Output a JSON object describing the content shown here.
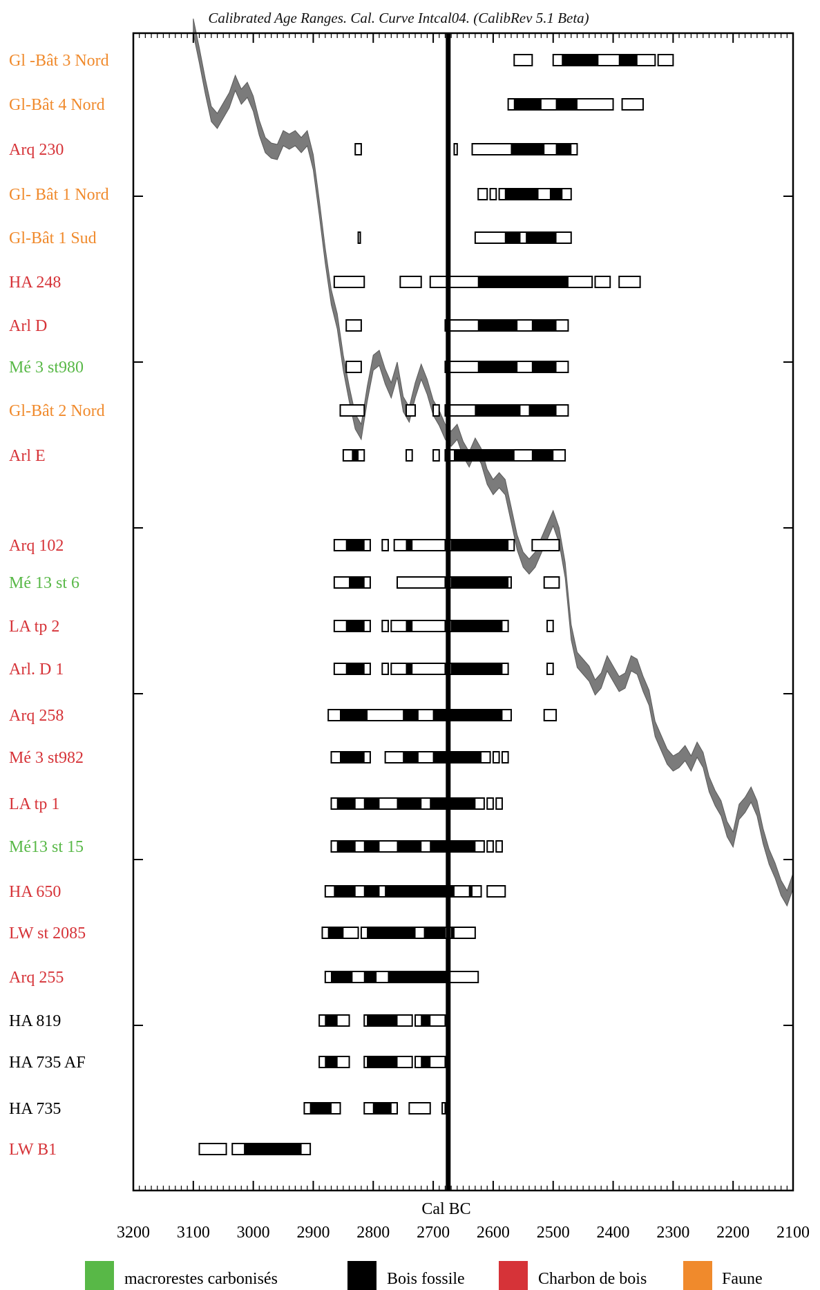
{
  "chart_data": {
    "type": "range-plot",
    "title": "Calibrated Age Ranges. Cal. Curve Intcal04. (CalibRev 5.1 Beta)",
    "xlabel": "Cal BC",
    "xlim": [
      3200,
      2100
    ],
    "x_ticks": [
      3200,
      3100,
      3000,
      2900,
      2800,
      2700,
      2600,
      2500,
      2400,
      2300,
      2200,
      2100
    ],
    "reference_line": 2675,
    "category_colors": {
      "macrorestes carbonisés": "#58b847",
      "Bois fossile": "#000000",
      "Charbon de bois": "#d63338",
      "Faune": "#f08a2c"
    },
    "legend": [
      {
        "label": "macrorestes carbonisés",
        "color": "#58b847"
      },
      {
        "label": "Bois fossile",
        "color": "#000000"
      },
      {
        "label": "Charbon de bois",
        "color": "#d63338"
      },
      {
        "label": "Faune",
        "color": "#f08a2c"
      }
    ],
    "samples": [
      {
        "name": "Gl -Bât 3 Nord",
        "category": "Faune",
        "sigma2": [
          [
            2565,
            2535
          ],
          [
            2500,
            2330
          ],
          [
            2325,
            2300
          ]
        ],
        "sigma1": [
          [
            2485,
            2425
          ],
          [
            2390,
            2360
          ]
        ]
      },
      {
        "name": "Gl-Bât 4 Nord",
        "category": "Faune",
        "sigma2": [
          [
            2575,
            2400
          ],
          [
            2385,
            2350
          ]
        ],
        "sigma1": [
          [
            2565,
            2520
          ],
          [
            2495,
            2460
          ]
        ]
      },
      {
        "name": "Arq 230",
        "category": "Charbon de bois",
        "sigma2": [
          [
            2830,
            2820
          ],
          [
            2665,
            2660
          ],
          [
            2635,
            2460
          ]
        ],
        "sigma1": [
          [
            2570,
            2515
          ],
          [
            2495,
            2470
          ]
        ]
      },
      {
        "name": "Gl- Bât 1 Nord",
        "category": "Faune",
        "sigma2": [
          [
            2625,
            2610
          ],
          [
            2605,
            2595
          ],
          [
            2590,
            2470
          ]
        ],
        "sigma1": [
          [
            2580,
            2525
          ],
          [
            2505,
            2485
          ]
        ]
      },
      {
        "name": "Gl-Bât 1 Sud",
        "category": "Faune",
        "sigma2": [
          [
            2825,
            2823
          ],
          [
            2630,
            2470
          ]
        ],
        "sigma1": [
          [
            2580,
            2555
          ],
          [
            2545,
            2495
          ]
        ]
      },
      {
        "name": "HA 248",
        "category": "Charbon de bois",
        "sigma2": [
          [
            2865,
            2815
          ],
          [
            2755,
            2720
          ],
          [
            2705,
            2435
          ],
          [
            2430,
            2405
          ],
          [
            2390,
            2355
          ]
        ],
        "sigma1": [
          [
            2625,
            2475
          ]
        ]
      },
      {
        "name": "Arl D",
        "category": "Charbon de bois",
        "sigma2": [
          [
            2845,
            2820
          ],
          [
            2680,
            2475
          ]
        ],
        "sigma1": [
          [
            2625,
            2560
          ],
          [
            2535,
            2495
          ]
        ]
      },
      {
        "name": "Mé 3 st980",
        "category": "macrorestes carbonisés",
        "sigma2": [
          [
            2845,
            2820
          ],
          [
            2680,
            2475
          ]
        ],
        "sigma1": [
          [
            2625,
            2560
          ],
          [
            2535,
            2495
          ]
        ]
      },
      {
        "name": "Gl-Bât 2 Nord",
        "category": "Faune",
        "sigma2": [
          [
            2855,
            2815
          ],
          [
            2745,
            2730
          ],
          [
            2700,
            2690
          ],
          [
            2680,
            2475
          ]
        ],
        "sigma1": [
          [
            2630,
            2555
          ],
          [
            2540,
            2495
          ]
        ]
      },
      {
        "name": "Arl E",
        "category": "Charbon de bois",
        "sigma2": [
          [
            2850,
            2815
          ],
          [
            2745,
            2735
          ],
          [
            2700,
            2690
          ],
          [
            2680,
            2480
          ]
        ],
        "sigma1": [
          [
            2835,
            2825
          ],
          [
            2665,
            2565
          ],
          [
            2535,
            2500
          ]
        ]
      },
      {
        "name": "Arq 102",
        "category": "Charbon de bois",
        "sigma2": [
          [
            2865,
            2805
          ],
          [
            2785,
            2775
          ],
          [
            2765,
            2680
          ],
          [
            2675,
            2565
          ],
          [
            2535,
            2490
          ]
        ],
        "sigma1": [
          [
            2845,
            2815
          ],
          [
            2745,
            2735
          ],
          [
            2670,
            2575
          ]
        ]
      },
      {
        "name": "Mé 13 st 6",
        "category": "macrorestes carbonisés",
        "sigma2": [
          [
            2865,
            2805
          ],
          [
            2760,
            2680
          ],
          [
            2675,
            2570
          ],
          [
            2515,
            2490
          ]
        ],
        "sigma1": [
          [
            2840,
            2815
          ],
          [
            2670,
            2575
          ]
        ]
      },
      {
        "name": "LA tp 2",
        "category": "Charbon de bois",
        "sigma2": [
          [
            2865,
            2805
          ],
          [
            2785,
            2775
          ],
          [
            2770,
            2680
          ],
          [
            2675,
            2575
          ],
          [
            2510,
            2500
          ]
        ],
        "sigma1": [
          [
            2845,
            2815
          ],
          [
            2745,
            2735
          ],
          [
            2670,
            2585
          ]
        ]
      },
      {
        "name": "Arl. D 1",
        "category": "Charbon de bois",
        "sigma2": [
          [
            2865,
            2805
          ],
          [
            2785,
            2775
          ],
          [
            2770,
            2680
          ],
          [
            2675,
            2575
          ],
          [
            2510,
            2500
          ]
        ],
        "sigma1": [
          [
            2845,
            2815
          ],
          [
            2745,
            2735
          ],
          [
            2670,
            2585
          ]
        ]
      },
      {
        "name": "Arq 258",
        "category": "Charbon de bois",
        "sigma2": [
          [
            2875,
            2570
          ],
          [
            2515,
            2495
          ]
        ],
        "sigma1": [
          [
            2855,
            2810
          ],
          [
            2750,
            2725
          ],
          [
            2700,
            2585
          ]
        ]
      },
      {
        "name": "Mé 3 st982",
        "category": "Charbon de bois",
        "sigma2": [
          [
            2870,
            2805
          ],
          [
            2780,
            2605
          ],
          [
            2600,
            2590
          ],
          [
            2585,
            2575
          ]
        ],
        "sigma1": [
          [
            2855,
            2815
          ],
          [
            2750,
            2725
          ],
          [
            2700,
            2620
          ]
        ]
      },
      {
        "name": "LA tp 1",
        "category": "Charbon de bois",
        "sigma2": [
          [
            2870,
            2615
          ],
          [
            2610,
            2600
          ],
          [
            2595,
            2585
          ]
        ],
        "sigma1": [
          [
            2860,
            2830
          ],
          [
            2815,
            2790
          ],
          [
            2760,
            2720
          ],
          [
            2705,
            2630
          ]
        ]
      },
      {
        "name": "Mé13 st 15",
        "category": "macrorestes carbonisés",
        "sigma2": [
          [
            2870,
            2615
          ],
          [
            2610,
            2600
          ],
          [
            2595,
            2585
          ]
        ],
        "sigma1": [
          [
            2860,
            2830
          ],
          [
            2815,
            2790
          ],
          [
            2760,
            2720
          ],
          [
            2705,
            2630
          ]
        ]
      },
      {
        "name": "HA 650",
        "category": "Charbon de bois",
        "sigma2": [
          [
            2880,
            2620
          ],
          [
            2610,
            2580
          ]
        ],
        "sigma1": [
          [
            2865,
            2830
          ],
          [
            2815,
            2790
          ],
          [
            2780,
            2665
          ],
          [
            2640,
            2635
          ]
        ]
      },
      {
        "name": "LW st 2085",
        "category": "Charbon de bois",
        "sigma2": [
          [
            2885,
            2825
          ],
          [
            2820,
            2630
          ]
        ],
        "sigma1": [
          [
            2875,
            2850
          ],
          [
            2810,
            2730
          ],
          [
            2715,
            2680
          ],
          [
            2670,
            2665
          ]
        ]
      },
      {
        "name": "Arq 255",
        "category": "Charbon de bois",
        "sigma2": [
          [
            2880,
            2625
          ]
        ],
        "sigma1": [
          [
            2870,
            2835
          ],
          [
            2815,
            2795
          ],
          [
            2775,
            2675
          ]
        ]
      },
      {
        "name": "HA 819",
        "category": "Bois fossile",
        "sigma2": [
          [
            2890,
            2840
          ],
          [
            2815,
            2735
          ],
          [
            2730,
            2680
          ]
        ],
        "sigma1": [
          [
            2880,
            2860
          ],
          [
            2810,
            2760
          ],
          [
            2720,
            2705
          ]
        ]
      },
      {
        "name": "HA 735 AF",
        "category": "Bois fossile",
        "sigma2": [
          [
            2890,
            2840
          ],
          [
            2815,
            2735
          ],
          [
            2730,
            2680
          ]
        ],
        "sigma1": [
          [
            2880,
            2860
          ],
          [
            2810,
            2760
          ],
          [
            2720,
            2705
          ]
        ]
      },
      {
        "name": "HA 735",
        "category": "Bois fossile",
        "sigma2": [
          [
            2915,
            2855
          ],
          [
            2815,
            2760
          ],
          [
            2740,
            2705
          ],
          [
            2685,
            2680
          ]
        ],
        "sigma1": [
          [
            2905,
            2870
          ],
          [
            2800,
            2770
          ]
        ]
      },
      {
        "name": "LW B1",
        "category": "Charbon de bois",
        "sigma2": [
          [
            3090,
            3045
          ],
          [
            3035,
            2905
          ]
        ],
        "sigma1": [
          [
            3015,
            2920
          ]
        ]
      }
    ],
    "curve_centerline": [
      [
        3100,
        38
      ],
      [
        3090,
        80
      ],
      [
        3080,
        125
      ],
      [
        3070,
        165
      ],
      [
        3060,
        175
      ],
      [
        3050,
        160
      ],
      [
        3040,
        145
      ],
      [
        3030,
        120
      ],
      [
        3020,
        140
      ],
      [
        3010,
        130
      ],
      [
        3000,
        150
      ],
      [
        2990,
        185
      ],
      [
        2980,
        210
      ],
      [
        2970,
        218
      ],
      [
        2960,
        220
      ],
      [
        2950,
        200
      ],
      [
        2940,
        205
      ],
      [
        2930,
        200
      ],
      [
        2920,
        210
      ],
      [
        2910,
        200
      ],
      [
        2900,
        235
      ],
      [
        2890,
        300
      ],
      [
        2880,
        370
      ],
      [
        2870,
        430
      ],
      [
        2860,
        465
      ],
      [
        2850,
        525
      ],
      [
        2840,
        570
      ],
      [
        2830,
        610
      ],
      [
        2820,
        625
      ],
      [
        2810,
        570
      ],
      [
        2800,
        525
      ],
      [
        2790,
        518
      ],
      [
        2780,
        545
      ],
      [
        2770,
        565
      ],
      [
        2760,
        535
      ],
      [
        2750,
        585
      ],
      [
        2740,
        600
      ],
      [
        2730,
        565
      ],
      [
        2720,
        538
      ],
      [
        2710,
        560
      ],
      [
        2700,
        590
      ],
      [
        2690,
        605
      ],
      [
        2680,
        625
      ],
      [
        2670,
        635
      ],
      [
        2660,
        625
      ],
      [
        2650,
        650
      ],
      [
        2640,
        665
      ],
      [
        2630,
        645
      ],
      [
        2620,
        660
      ],
      [
        2610,
        690
      ],
      [
        2600,
        705
      ],
      [
        2590,
        695
      ],
      [
        2580,
        705
      ],
      [
        2570,
        745
      ],
      [
        2560,
        785
      ],
      [
        2550,
        810
      ],
      [
        2540,
        820
      ],
      [
        2530,
        810
      ],
      [
        2520,
        790
      ],
      [
        2510,
        770
      ],
      [
        2500,
        750
      ],
      [
        2490,
        775
      ],
      [
        2480,
        825
      ],
      [
        2470,
        915
      ],
      [
        2460,
        955
      ],
      [
        2450,
        965
      ],
      [
        2440,
        975
      ],
      [
        2430,
        995
      ],
      [
        2420,
        985
      ],
      [
        2410,
        960
      ],
      [
        2400,
        975
      ],
      [
        2390,
        990
      ],
      [
        2380,
        985
      ],
      [
        2370,
        960
      ],
      [
        2360,
        965
      ],
      [
        2350,
        990
      ],
      [
        2340,
        1010
      ],
      [
        2330,
        1055
      ],
      [
        2320,
        1075
      ],
      [
        2310,
        1095
      ],
      [
        2300,
        1105
      ],
      [
        2290,
        1100
      ],
      [
        2280,
        1090
      ],
      [
        2270,
        1105
      ],
      [
        2260,
        1085
      ],
      [
        2250,
        1100
      ],
      [
        2240,
        1135
      ],
      [
        2230,
        1155
      ],
      [
        2220,
        1170
      ],
      [
        2210,
        1200
      ],
      [
        2200,
        1215
      ],
      [
        2190,
        1175
      ],
      [
        2180,
        1165
      ],
      [
        2170,
        1150
      ],
      [
        2160,
        1170
      ],
      [
        2150,
        1210
      ],
      [
        2140,
        1240
      ],
      [
        2130,
        1260
      ],
      [
        2120,
        1285
      ],
      [
        2110,
        1300
      ],
      [
        2100,
        1275
      ]
    ]
  },
  "ui": {
    "title_color": "#111111"
  }
}
